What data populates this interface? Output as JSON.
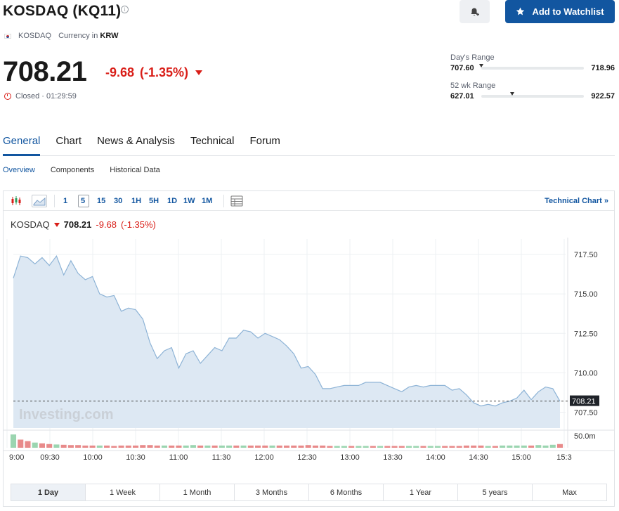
{
  "header": {
    "title": "KOSDAQ (KQ11)",
    "exchange": "KOSDAQ",
    "currency_label": "Currency in",
    "currency": "KRW",
    "watchlist_label": "Add to Watchlist"
  },
  "quote": {
    "price": "708.21",
    "change": "-9.68",
    "change_pct": "(-1.35%)",
    "status": "Closed · 01:29:59",
    "down_color": "#d91e18"
  },
  "ranges": {
    "day_label": "Day's Range",
    "day_low": "707.60",
    "day_high": "718.96",
    "day_marker": 0.0,
    "wk52_label": "52 wk Range",
    "wk52_low": "627.01",
    "wk52_high": "922.57",
    "wk52_marker": 0.3
  },
  "tabs": [
    "General",
    "Chart",
    "News & Analysis",
    "Technical",
    "Forum"
  ],
  "subtabs": [
    "Overview",
    "Components",
    "Historical Data"
  ],
  "toolbar": {
    "intervals": [
      "1",
      "5",
      "15",
      "30",
      "1H",
      "5H",
      "1D",
      "1W",
      "1M"
    ],
    "selected_interval": "5",
    "technical_chart": "Technical Chart »"
  },
  "legend": {
    "name": "KOSDAQ",
    "price": "708.21",
    "change": "-9.68",
    "change_pct": "(-1.35%)"
  },
  "watermark": "Investing.com",
  "periods": [
    "1 Day",
    "1 Week",
    "1 Month",
    "3 Months",
    "6 Months",
    "1 Year",
    "5 years",
    "Max"
  ],
  "selected_period": "1 Day",
  "chart_data": {
    "type": "area",
    "x_ticks": [
      "9:00",
      "09:30",
      "10:00",
      "10:30",
      "11:00",
      "11:30",
      "12:00",
      "12:30",
      "13:00",
      "13:30",
      "14:00",
      "14:30",
      "15:00",
      "15:3"
    ],
    "y_ticks": [
      "717.50",
      "715.00",
      "712.50",
      "710.00",
      "707.50"
    ],
    "y_range": [
      706.5,
      718.3
    ],
    "last_price": "708.21",
    "volume_label": "50.0m",
    "line_color": "#8db3d6",
    "fill_color": "#dde8f3",
    "up_volume_color": "#9bd5b0",
    "down_volume_color": "#e88a8a",
    "series": [
      {
        "x": 0,
        "y": 716.0
      },
      {
        "x": 1,
        "y": 717.4
      },
      {
        "x": 2,
        "y": 717.3
      },
      {
        "x": 3,
        "y": 716.9
      },
      {
        "x": 4,
        "y": 717.3
      },
      {
        "x": 5,
        "y": 716.8
      },
      {
        "x": 6,
        "y": 717.4
      },
      {
        "x": 7,
        "y": 716.2
      },
      {
        "x": 8,
        "y": 717.1
      },
      {
        "x": 9,
        "y": 716.3
      },
      {
        "x": 10,
        "y": 715.9
      },
      {
        "x": 11,
        "y": 716.1
      },
      {
        "x": 12,
        "y": 715.0
      },
      {
        "x": 13,
        "y": 714.8
      },
      {
        "x": 14,
        "y": 714.9
      },
      {
        "x": 15,
        "y": 713.9
      },
      {
        "x": 16,
        "y": 714.1
      },
      {
        "x": 17,
        "y": 714.0
      },
      {
        "x": 18,
        "y": 713.4
      },
      {
        "x": 19,
        "y": 711.9
      },
      {
        "x": 20,
        "y": 710.9
      },
      {
        "x": 21,
        "y": 711.4
      },
      {
        "x": 22,
        "y": 711.6
      },
      {
        "x": 23,
        "y": 710.3
      },
      {
        "x": 24,
        "y": 711.2
      },
      {
        "x": 25,
        "y": 711.4
      },
      {
        "x": 26,
        "y": 710.6
      },
      {
        "x": 27,
        "y": 711.1
      },
      {
        "x": 28,
        "y": 711.6
      },
      {
        "x": 29,
        "y": 711.4
      },
      {
        "x": 30,
        "y": 712.2
      },
      {
        "x": 31,
        "y": 712.2
      },
      {
        "x": 32,
        "y": 712.7
      },
      {
        "x": 33,
        "y": 712.6
      },
      {
        "x": 34,
        "y": 712.2
      },
      {
        "x": 35,
        "y": 712.5
      },
      {
        "x": 36,
        "y": 712.3
      },
      {
        "x": 37,
        "y": 712.1
      },
      {
        "x": 38,
        "y": 711.7
      },
      {
        "x": 39,
        "y": 711.2
      },
      {
        "x": 40,
        "y": 710.3
      },
      {
        "x": 41,
        "y": 710.4
      },
      {
        "x": 42,
        "y": 709.9
      },
      {
        "x": 43,
        "y": 709.0
      },
      {
        "x": 44,
        "y": 709.0
      },
      {
        "x": 45,
        "y": 709.1
      },
      {
        "x": 46,
        "y": 709.2
      },
      {
        "x": 47,
        "y": 709.2
      },
      {
        "x": 48,
        "y": 709.2
      },
      {
        "x": 49,
        "y": 709.4
      },
      {
        "x": 50,
        "y": 709.4
      },
      {
        "x": 51,
        "y": 709.4
      },
      {
        "x": 52,
        "y": 709.2
      },
      {
        "x": 53,
        "y": 709.0
      },
      {
        "x": 54,
        "y": 708.8
      },
      {
        "x": 55,
        "y": 709.1
      },
      {
        "x": 56,
        "y": 709.2
      },
      {
        "x": 57,
        "y": 709.1
      },
      {
        "x": 58,
        "y": 709.2
      },
      {
        "x": 59,
        "y": 709.2
      },
      {
        "x": 60,
        "y": 709.2
      },
      {
        "x": 61,
        "y": 708.9
      },
      {
        "x": 62,
        "y": 709.0
      },
      {
        "x": 63,
        "y": 708.6
      },
      {
        "x": 64,
        "y": 708.1
      },
      {
        "x": 65,
        "y": 707.9
      },
      {
        "x": 66,
        "y": 708.0
      },
      {
        "x": 67,
        "y": 707.9
      },
      {
        "x": 68,
        "y": 708.1
      },
      {
        "x": 69,
        "y": 708.2
      },
      {
        "x": 70,
        "y": 708.4
      },
      {
        "x": 71,
        "y": 708.9
      },
      {
        "x": 72,
        "y": 708.3
      },
      {
        "x": 73,
        "y": 708.8
      },
      {
        "x": 74,
        "y": 709.1
      },
      {
        "x": 75,
        "y": 709.0
      },
      {
        "x": 76,
        "y": 708.2
      }
    ],
    "volume": [
      {
        "v": 0.9,
        "up": true
      },
      {
        "v": 0.55,
        "up": false
      },
      {
        "v": 0.45,
        "up": false
      },
      {
        "v": 0.35,
        "up": true
      },
      {
        "v": 0.3,
        "up": false
      },
      {
        "v": 0.25,
        "up": false
      },
      {
        "v": 0.22,
        "up": true
      },
      {
        "v": 0.2,
        "up": false
      },
      {
        "v": 0.18,
        "up": false
      },
      {
        "v": 0.18,
        "up": false
      },
      {
        "v": 0.15,
        "up": false
      },
      {
        "v": 0.15,
        "up": false
      },
      {
        "v": 0.15,
        "up": true
      },
      {
        "v": 0.15,
        "up": false
      },
      {
        "v": 0.12,
        "up": false
      },
      {
        "v": 0.15,
        "up": false
      },
      {
        "v": 0.15,
        "up": false
      },
      {
        "v": 0.15,
        "up": false
      },
      {
        "v": 0.18,
        "up": false
      },
      {
        "v": 0.18,
        "up": false
      },
      {
        "v": 0.15,
        "up": false
      },
      {
        "v": 0.15,
        "up": true
      },
      {
        "v": 0.15,
        "up": false
      },
      {
        "v": 0.15,
        "up": false
      },
      {
        "v": 0.15,
        "up": true
      },
      {
        "v": 0.18,
        "up": true
      },
      {
        "v": 0.15,
        "up": false
      },
      {
        "v": 0.15,
        "up": true
      },
      {
        "v": 0.15,
        "up": false
      },
      {
        "v": 0.15,
        "up": true
      },
      {
        "v": 0.15,
        "up": true
      },
      {
        "v": 0.15,
        "up": false
      },
      {
        "v": 0.15,
        "up": true
      },
      {
        "v": 0.15,
        "up": false
      },
      {
        "v": 0.15,
        "up": false
      },
      {
        "v": 0.15,
        "up": false
      },
      {
        "v": 0.15,
        "up": true
      },
      {
        "v": 0.15,
        "up": false
      },
      {
        "v": 0.15,
        "up": false
      },
      {
        "v": 0.15,
        "up": false
      },
      {
        "v": 0.15,
        "up": false
      },
      {
        "v": 0.18,
        "up": false
      },
      {
        "v": 0.15,
        "up": false
      },
      {
        "v": 0.15,
        "up": false
      },
      {
        "v": 0.12,
        "up": false
      },
      {
        "v": 0.12,
        "up": true
      },
      {
        "v": 0.12,
        "up": true
      },
      {
        "v": 0.12,
        "up": false
      },
      {
        "v": 0.12,
        "up": true
      },
      {
        "v": 0.12,
        "up": true
      },
      {
        "v": 0.12,
        "up": false
      },
      {
        "v": 0.12,
        "up": true
      },
      {
        "v": 0.12,
        "up": false
      },
      {
        "v": 0.12,
        "up": false
      },
      {
        "v": 0.12,
        "up": false
      },
      {
        "v": 0.12,
        "up": true
      },
      {
        "v": 0.12,
        "up": true
      },
      {
        "v": 0.12,
        "up": false
      },
      {
        "v": 0.12,
        "up": true
      },
      {
        "v": 0.12,
        "up": true
      },
      {
        "v": 0.12,
        "up": false
      },
      {
        "v": 0.12,
        "up": false
      },
      {
        "v": 0.12,
        "up": false
      },
      {
        "v": 0.15,
        "up": false
      },
      {
        "v": 0.15,
        "up": false
      },
      {
        "v": 0.15,
        "up": false
      },
      {
        "v": 0.12,
        "up": true
      },
      {
        "v": 0.12,
        "up": false
      },
      {
        "v": 0.15,
        "up": true
      },
      {
        "v": 0.15,
        "up": true
      },
      {
        "v": 0.15,
        "up": true
      },
      {
        "v": 0.15,
        "up": true
      },
      {
        "v": 0.15,
        "up": false
      },
      {
        "v": 0.18,
        "up": true
      },
      {
        "v": 0.15,
        "up": true
      },
      {
        "v": 0.2,
        "up": true
      },
      {
        "v": 0.25,
        "up": false
      }
    ]
  }
}
